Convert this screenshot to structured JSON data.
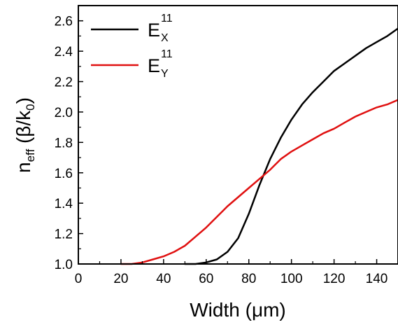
{
  "chart_data": {
    "type": "line",
    "xlabel": {
      "main": "Width (",
      "greek": "μ",
      "rest": "m)"
    },
    "ylabel": {
      "n": "n",
      "sub": "eff",
      "mid": " (β/k",
      "sub2": "0",
      "close": ")"
    },
    "xlim": [
      0,
      150
    ],
    "ylim": [
      1.0,
      2.7
    ],
    "xticks": [
      "0",
      "20",
      "40",
      "60",
      "80",
      "100",
      "120",
      "140"
    ],
    "yticks": [
      "1.0",
      "1.2",
      "1.4",
      "1.6",
      "1.8",
      "2.0",
      "2.2",
      "2.4",
      "2.6"
    ],
    "legend_position": "top-left",
    "series": [
      {
        "name": {
          "base": "E",
          "sup": "11",
          "sub": "X"
        },
        "color": "#000000",
        "x": [
          50,
          55,
          60,
          65,
          70,
          75,
          80,
          85,
          90,
          95,
          100,
          105,
          110,
          115,
          120,
          125,
          130,
          135,
          140,
          145,
          150
        ],
        "y": [
          1.0,
          1.0,
          1.01,
          1.03,
          1.08,
          1.17,
          1.33,
          1.52,
          1.69,
          1.83,
          1.95,
          2.05,
          2.13,
          2.2,
          2.27,
          2.32,
          2.37,
          2.42,
          2.46,
          2.5,
          2.55
        ]
      },
      {
        "name": {
          "base": "E",
          "sup": "11",
          "sub": "Y"
        },
        "color": "#e01010",
        "x": [
          20,
          25,
          30,
          35,
          40,
          45,
          50,
          55,
          60,
          65,
          70,
          75,
          80,
          85,
          90,
          95,
          100,
          105,
          110,
          115,
          120,
          125,
          130,
          135,
          140,
          145,
          150
        ],
        "y": [
          1.0,
          1.0,
          1.01,
          1.03,
          1.05,
          1.08,
          1.12,
          1.18,
          1.24,
          1.31,
          1.38,
          1.44,
          1.5,
          1.56,
          1.62,
          1.69,
          1.74,
          1.78,
          1.82,
          1.86,
          1.89,
          1.93,
          1.97,
          2.0,
          2.03,
          2.05,
          2.08
        ]
      }
    ]
  }
}
